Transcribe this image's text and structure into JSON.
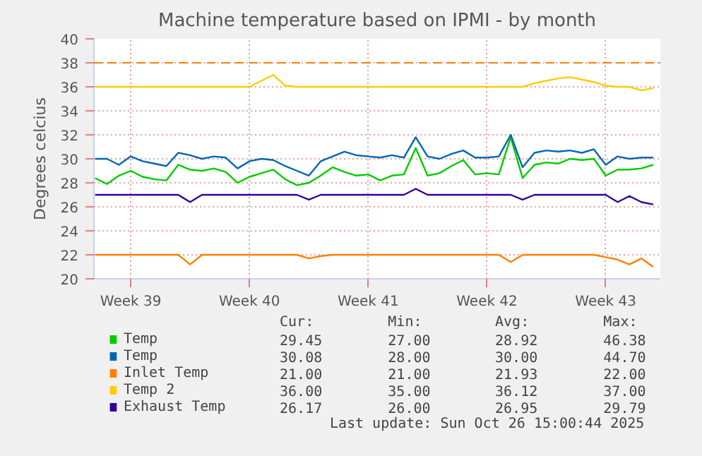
{
  "chart_data": {
    "type": "line",
    "title": "Machine temperature based on IPMI - by month",
    "ylabel": "Degrees celcius",
    "categories": [
      null,
      null,
      null,
      "Week 39",
      null,
      null,
      null,
      null,
      null,
      null,
      null,
      null,
      null,
      "Week 40",
      null,
      null,
      null,
      null,
      null,
      null,
      null,
      null,
      null,
      "Week 41",
      null,
      null,
      null,
      null,
      null,
      null,
      null,
      null,
      null,
      "Week 42",
      null,
      null,
      null,
      null,
      null,
      null,
      null,
      null,
      null,
      "Week 43",
      null,
      null,
      null,
      null
    ],
    "ylim": [
      20,
      40
    ],
    "yticks": [
      20,
      22,
      24,
      26,
      28,
      30,
      32,
      34,
      36,
      38,
      40
    ],
    "grid": true,
    "legend": "bottom",
    "marker": "none",
    "line_style": "solid",
    "series": [
      {
        "name": "Temp",
        "color": "#00cc00",
        "values": [
          28.4,
          27.9,
          28.6,
          29.0,
          28.5,
          28.3,
          28.2,
          29.5,
          29.1,
          29.0,
          29.2,
          28.9,
          28.0,
          28.5,
          28.8,
          29.1,
          28.3,
          27.8,
          28.0,
          28.6,
          29.3,
          28.9,
          28.6,
          28.7,
          28.2,
          28.6,
          28.7,
          30.9,
          28.6,
          28.8,
          29.4,
          29.9,
          28.7,
          28.8,
          28.7,
          31.8,
          28.4,
          29.5,
          29.7,
          29.6,
          30.0,
          29.9,
          30.0,
          28.6,
          29.1,
          29.1,
          29.2,
          29.5
        ]
      },
      {
        "name": "Temp",
        "color": "#0066b3",
        "values": [
          30.0,
          30.0,
          29.5,
          30.2,
          29.8,
          29.6,
          29.4,
          30.5,
          30.3,
          30.0,
          30.2,
          30.1,
          29.2,
          29.8,
          30.0,
          29.9,
          29.4,
          29.0,
          28.6,
          29.8,
          30.2,
          30.6,
          30.3,
          30.2,
          30.1,
          30.3,
          30.1,
          31.8,
          30.2,
          30.0,
          30.4,
          30.7,
          30.1,
          30.1,
          30.2,
          32.0,
          29.3,
          30.5,
          30.7,
          30.6,
          30.7,
          30.5,
          30.8,
          29.5,
          30.2,
          30.0,
          30.1,
          30.1
        ]
      },
      {
        "name": "Inlet Temp",
        "color": "#ff8000",
        "values": [
          22,
          22,
          22,
          22,
          22,
          22,
          22,
          22,
          21.2,
          22,
          22,
          22,
          22,
          22,
          22,
          22,
          22,
          22,
          21.7,
          21.9,
          22,
          22,
          22,
          22,
          22,
          22,
          22,
          22,
          22,
          22,
          22,
          22,
          22,
          22,
          22,
          21.4,
          22,
          22,
          22,
          22,
          22,
          22,
          22,
          21.8,
          21.6,
          21.2,
          21.7,
          21.0
        ]
      },
      {
        "name": "Temp 2",
        "color": "#ffcc00",
        "values": [
          36,
          36,
          36,
          36,
          36,
          36,
          36,
          36,
          36,
          36,
          36,
          36,
          36,
          36,
          36.5,
          37.0,
          36.1,
          36,
          36,
          36,
          36,
          36,
          36,
          36,
          36,
          36,
          36,
          36,
          36,
          36,
          36,
          36,
          36,
          36,
          36,
          36,
          36,
          36.3,
          36.5,
          36.7,
          36.8,
          36.6,
          36.4,
          36.1,
          36,
          36,
          35.7,
          35.9
        ]
      },
      {
        "name": "Exhaust Temp",
        "color": "#330099",
        "values": [
          27,
          27,
          27,
          27,
          27,
          27,
          27,
          27,
          26.4,
          27,
          27,
          27,
          27,
          27,
          27,
          27,
          27,
          27,
          26.6,
          27,
          27,
          27,
          27,
          27,
          27,
          27,
          27,
          27.5,
          27,
          27,
          27,
          27,
          27,
          27,
          27,
          27,
          26.6,
          27,
          27,
          27,
          27,
          27,
          27,
          27,
          26.4,
          26.9,
          26.4,
          26.2
        ]
      }
    ],
    "ref_lines": [
      {
        "axis": "y",
        "value": 38,
        "color": "#ff8000",
        "line_style": "dashed"
      }
    ],
    "annotations": [
      "Cur:",
      "Min:",
      "Avg:",
      "Max:",
      "29.45",
      "27.00",
      "28.92",
      "46.38",
      "30.08",
      "28.00",
      "30.00",
      "44.70",
      "21.00",
      "21.00",
      "21.93",
      "22.00",
      "36.00",
      "35.00",
      "36.12",
      "37.00",
      "26.17",
      "26.00",
      "26.95",
      "29.79",
      "Last update: Sun Oct 26 15:00:44 2025"
    ]
  }
}
